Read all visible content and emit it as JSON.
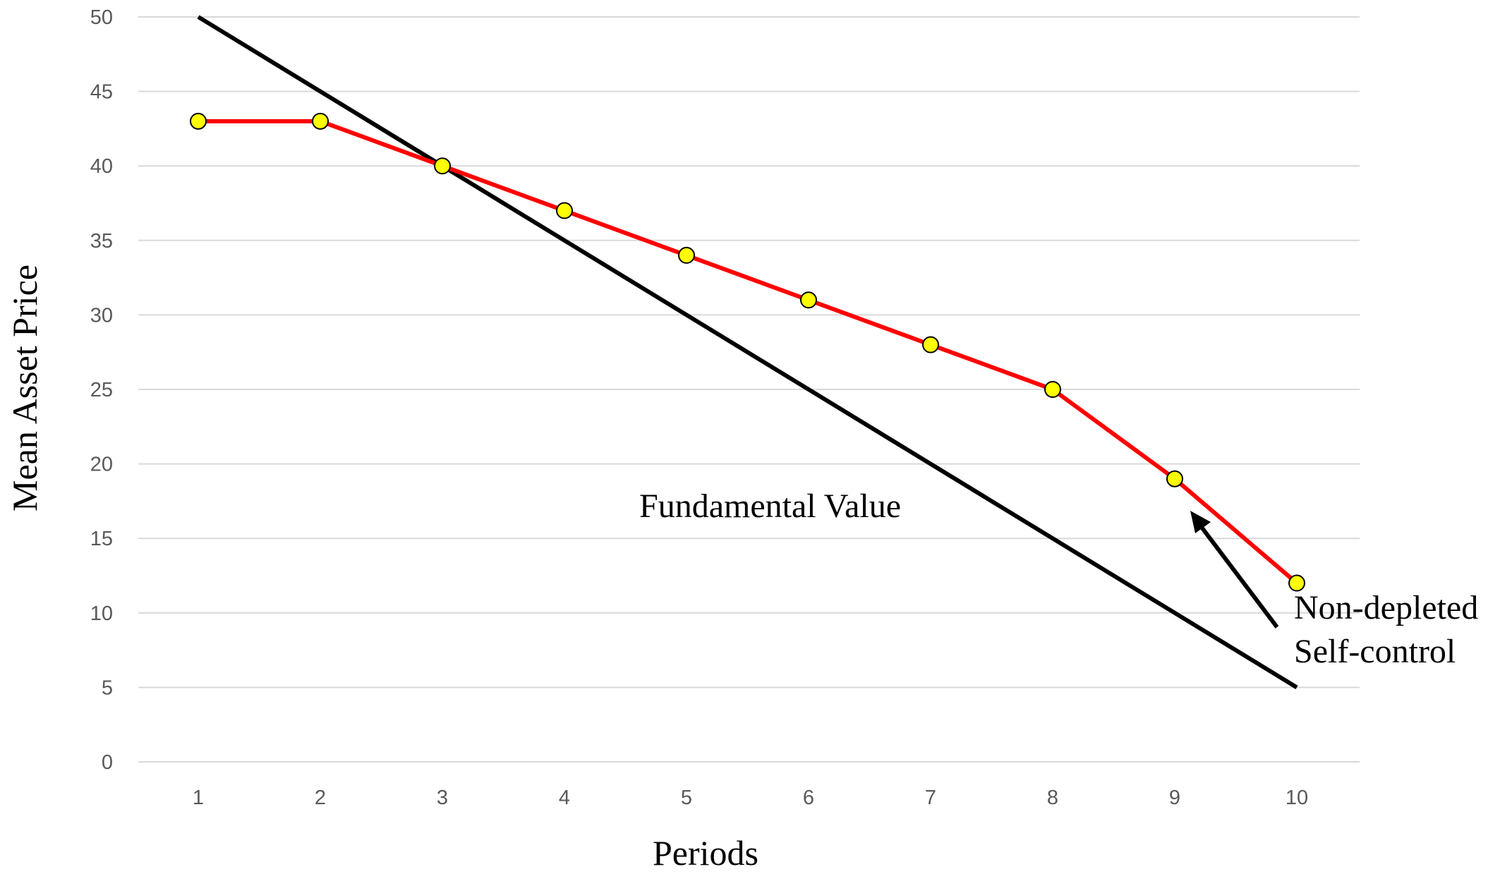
{
  "chart_data": {
    "type": "line",
    "title": "",
    "xlabel": "Periods",
    "ylabel": "Mean Asset Price",
    "categories": [
      "1",
      "2",
      "3",
      "4",
      "5",
      "6",
      "7",
      "8",
      "9",
      "10"
    ],
    "ylim": [
      0,
      50
    ],
    "yticks": [
      "0",
      "5",
      "10",
      "15",
      "20",
      "25",
      "30",
      "35",
      "40",
      "45",
      "50"
    ],
    "grid": "horizontal",
    "series": [
      {
        "values": [
          43,
          43,
          40,
          37,
          34,
          31,
          28,
          25,
          19,
          12
        ],
        "color": "#ff0000",
        "marker": "circle",
        "marker_color": "#ffff00"
      }
    ],
    "fundamental_value": {
      "x": [
        1,
        10
      ],
      "y": [
        50,
        5
      ],
      "color": "#000000"
    },
    "annotations": {
      "fundamental_label": "Fundamental Value",
      "series_label_line1": "Non-depleted",
      "series_label_line2": "Self-control"
    }
  }
}
